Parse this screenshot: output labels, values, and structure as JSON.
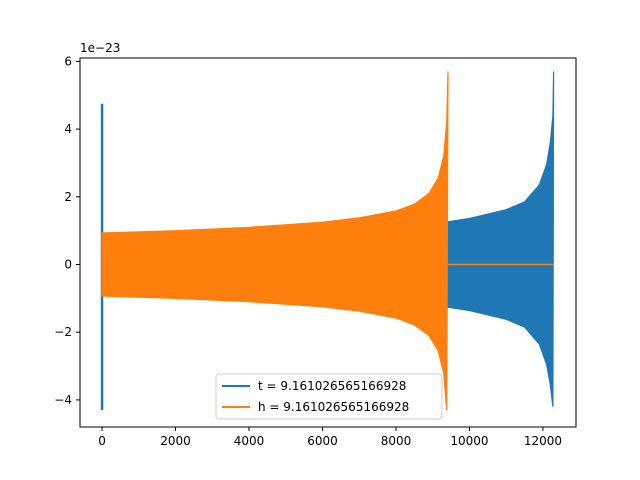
{
  "chart_data": {
    "type": "line",
    "title": "",
    "xlabel": "",
    "ylabel": "",
    "y_offset_text": "1e−23",
    "xlim": [
      -600,
      12900
    ],
    "ylim": [
      -4.8,
      6.1
    ],
    "x_ticks": [
      0,
      2000,
      4000,
      6000,
      8000,
      10000,
      12000
    ],
    "x_tick_labels": [
      "0",
      "2000",
      "4000",
      "6000",
      "8000",
      "10000",
      "12000"
    ],
    "y_ticks": [
      -4,
      -2,
      0,
      2,
      4,
      6
    ],
    "y_tick_labels": [
      "−4",
      "−2",
      "0",
      "2",
      "4",
      "6"
    ],
    "legend_position": "lower center",
    "series": [
      {
        "name": "t = 9.161026565166928",
        "color": "#1f77b4",
        "spike": {
          "x": 0,
          "ymax": 4.75,
          "ymin": -4.3
        },
        "envelope_upper": [
          [
            0,
            0.9
          ],
          [
            2000,
            0.96
          ],
          [
            4000,
            1.02
          ],
          [
            6000,
            1.1
          ],
          [
            8000,
            1.18
          ],
          [
            9400,
            1.26
          ],
          [
            10000,
            1.36
          ],
          [
            11000,
            1.62
          ],
          [
            11500,
            1.85
          ],
          [
            11900,
            2.35
          ],
          [
            12100,
            2.95
          ],
          [
            12200,
            3.6
          ],
          [
            12270,
            4.4
          ],
          [
            12290,
            5.7
          ]
        ],
        "envelope_lower": [
          [
            0,
            -0.9
          ],
          [
            2000,
            -0.96
          ],
          [
            4000,
            -1.02
          ],
          [
            6000,
            -1.1
          ],
          [
            8000,
            -1.18
          ],
          [
            9400,
            -1.26
          ],
          [
            10000,
            -1.36
          ],
          [
            11000,
            -1.62
          ],
          [
            11500,
            -1.85
          ],
          [
            11900,
            -2.35
          ],
          [
            12100,
            -2.95
          ],
          [
            12200,
            -3.55
          ],
          [
            12270,
            -4.2
          ]
        ],
        "end_x": 12300
      },
      {
        "name": "h = 9.161026565166928",
        "color": "#ff7f0e",
        "envelope_upper": [
          [
            0,
            0.93
          ],
          [
            2000,
            1.0
          ],
          [
            4000,
            1.1
          ],
          [
            6000,
            1.25
          ],
          [
            7000,
            1.38
          ],
          [
            8000,
            1.58
          ],
          [
            8500,
            1.78
          ],
          [
            8900,
            2.1
          ],
          [
            9150,
            2.55
          ],
          [
            9300,
            3.2
          ],
          [
            9380,
            4.2
          ],
          [
            9415,
            5.7
          ]
        ],
        "envelope_lower": [
          [
            0,
            -0.93
          ],
          [
            2000,
            -1.0
          ],
          [
            4000,
            -1.1
          ],
          [
            6000,
            -1.25
          ],
          [
            7000,
            -1.38
          ],
          [
            8000,
            -1.58
          ],
          [
            8500,
            -1.78
          ],
          [
            8900,
            -2.1
          ],
          [
            9150,
            -2.55
          ],
          [
            9300,
            -3.2
          ],
          [
            9380,
            -4.3
          ]
        ],
        "end_x": 9420,
        "tail": {
          "x_start": 9420,
          "x_end": 12300,
          "y": 0.0
        }
      }
    ]
  }
}
